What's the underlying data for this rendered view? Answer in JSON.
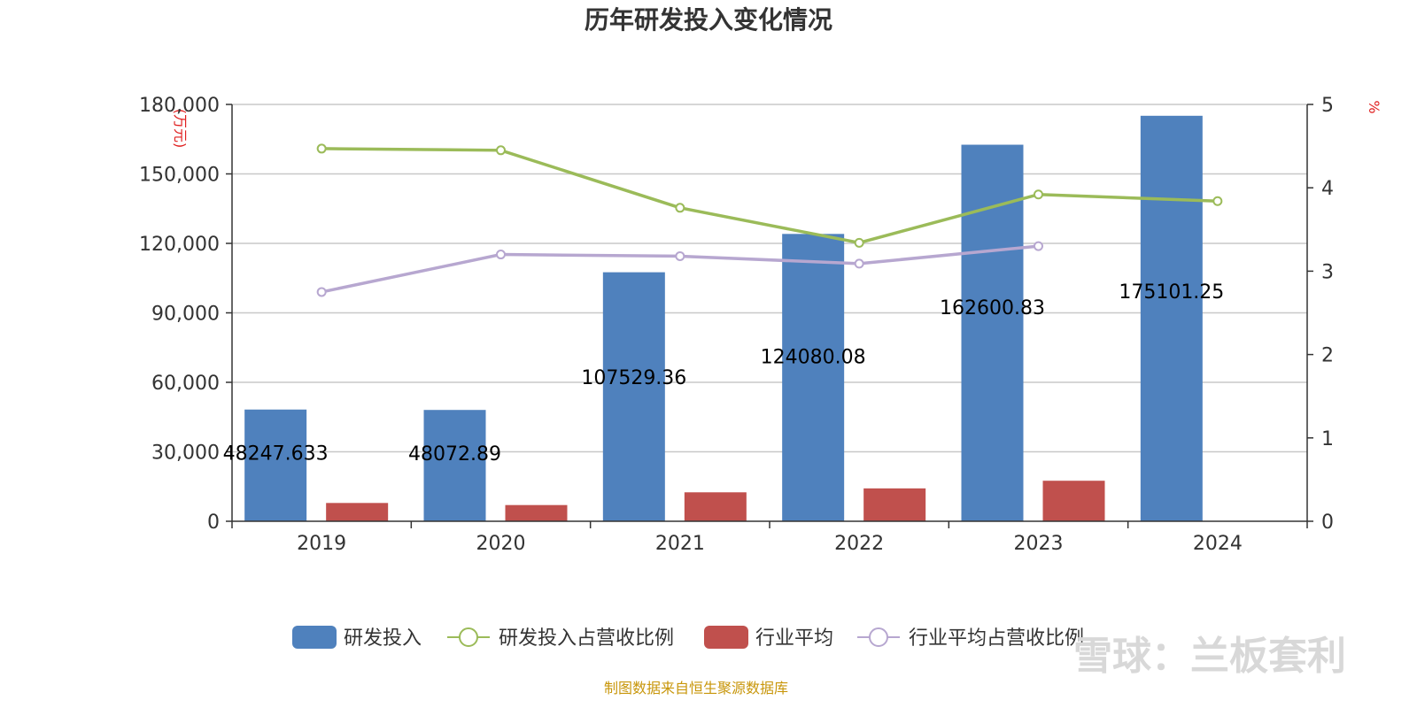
{
  "chart_data": {
    "type": "bar",
    "title": "历年研发投入变化情况",
    "categories": [
      "2019",
      "2020",
      "2021",
      "2022",
      "2023",
      "2024"
    ],
    "left_axis": {
      "unit": "(万元)",
      "ylim": [
        0,
        180000
      ],
      "ticks": [
        "0",
        "30,000",
        "60,000",
        "90,000",
        "120,000",
        "150,000",
        "180,000"
      ]
    },
    "right_axis": {
      "unit": "%",
      "ylim": [
        0,
        5
      ],
      "ticks": [
        "0",
        "1",
        "2",
        "3",
        "4",
        "5"
      ]
    },
    "series": [
      {
        "name": "研发投入",
        "kind": "bar",
        "axis": "left",
        "color": "#4f81bd",
        "values": [
          48247.633,
          48072.89,
          107529.36,
          124080.08,
          162600.83,
          175101.25
        ],
        "labels": [
          "48247.633",
          "48072.89",
          "107529.36",
          "124080.08",
          "162600.83",
          "175101.25"
        ]
      },
      {
        "name": "研发投入占营收比例",
        "kind": "line",
        "axis": "right",
        "color": "#9bbb59",
        "values": [
          4.47,
          4.45,
          3.76,
          3.34,
          3.92,
          3.84
        ]
      },
      {
        "name": "行业平均",
        "kind": "bar",
        "axis": "left",
        "color": "#c0504d",
        "values": [
          7900,
          7000,
          12500,
          14200,
          17500,
          null
        ]
      },
      {
        "name": "行业平均占营收比例",
        "kind": "line",
        "axis": "right",
        "color": "#b7a7d0",
        "values": [
          2.75,
          3.2,
          3.18,
          3.09,
          3.3,
          null
        ]
      }
    ],
    "grid": true,
    "legend_position": "bottom"
  },
  "footer": {
    "source": "制图数据来自恒生聚源数据库",
    "watermark": "雪球：兰板套利"
  }
}
